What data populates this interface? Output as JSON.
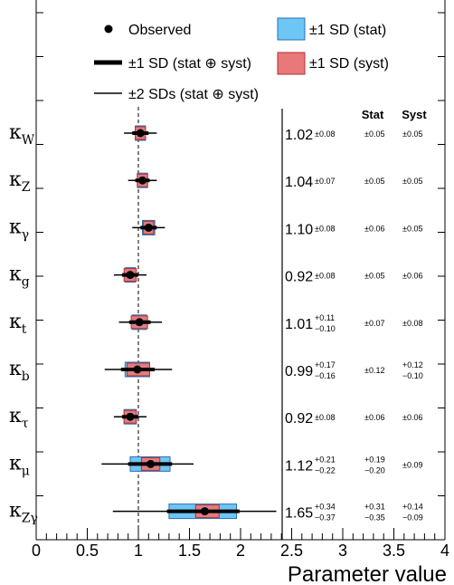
{
  "chart_data": {
    "type": "scatter",
    "xlabel": "Parameter value",
    "xlim": [
      0,
      4
    ],
    "x_ticks": [
      "0",
      "0.5",
      "1",
      "1.5",
      "2",
      "2.5",
      "3",
      "3.5",
      "4"
    ],
    "reference_line": 1,
    "legend": [
      {
        "key": "observed",
        "label": "Observed"
      },
      {
        "key": "thick",
        "label": "±1 SD (stat ⊕ syst)"
      },
      {
        "key": "thin",
        "label": "±2 SDs (stat ⊕ syst)"
      },
      {
        "key": "stat_box",
        "label": "±1 SD (stat)"
      },
      {
        "key": "syst_box",
        "label": "±1 SD (syst)"
      }
    ],
    "column_headers": {
      "stat": "Stat",
      "syst": "Syst"
    },
    "colors": {
      "stat": "#6ec6f5",
      "syst": "#e8787a",
      "stat_edge": "#2b6fb5",
      "syst_edge": "#b03030"
    },
    "parameters": [
      {
        "symbol": "κ",
        "sub": "W",
        "value": 1.02,
        "value_text": "1.02",
        "tot": "±0.08",
        "stat": "±0.05",
        "syst": "±0.05",
        "one_sd": [
          0.94,
          1.1
        ],
        "two_sd": [
          0.86,
          1.18
        ],
        "stat_band": [
          0.97,
          1.07
        ],
        "syst_band": [
          0.97,
          1.07
        ]
      },
      {
        "symbol": "κ",
        "sub": "Z",
        "value": 1.04,
        "value_text": "1.04",
        "tot": "±0.07",
        "stat": "±0.05",
        "syst": "±0.05",
        "one_sd": [
          0.97,
          1.11
        ],
        "two_sd": [
          0.9,
          1.18
        ],
        "stat_band": [
          0.99,
          1.09
        ],
        "syst_band": [
          0.99,
          1.09
        ]
      },
      {
        "symbol": "κ",
        "sub": "γ",
        "value": 1.1,
        "value_text": "1.10",
        "tot": "±0.08",
        "stat": "±0.06",
        "syst": "±0.05",
        "one_sd": [
          1.02,
          1.18
        ],
        "two_sd": [
          0.94,
          1.26
        ],
        "stat_band": [
          1.04,
          1.16
        ],
        "syst_band": [
          1.05,
          1.15
        ]
      },
      {
        "symbol": "κ",
        "sub": "g",
        "value": 0.92,
        "value_text": "0.92",
        "tot": "±0.08",
        "stat": "±0.05",
        "syst": "±0.06",
        "one_sd": [
          0.84,
          1.0
        ],
        "two_sd": [
          0.76,
          1.08
        ],
        "stat_band": [
          0.87,
          0.97
        ],
        "syst_band": [
          0.86,
          0.98
        ]
      },
      {
        "symbol": "κ",
        "sub": "t",
        "value": 1.01,
        "value_text": "1.01",
        "tot_up": "+0.11",
        "tot_dn": "−0.10",
        "stat": "±0.07",
        "syst": "±0.08",
        "one_sd": [
          0.91,
          1.12
        ],
        "two_sd": [
          0.81,
          1.23
        ],
        "stat_band": [
          0.94,
          1.08
        ],
        "syst_band": [
          0.93,
          1.09
        ]
      },
      {
        "symbol": "κ",
        "sub": "b",
        "value": 0.99,
        "value_text": "0.99",
        "tot_up": "+0.17",
        "tot_dn": "−0.16",
        "stat": "±0.12",
        "syst_up": "+0.12",
        "syst_dn": "−0.10",
        "one_sd": [
          0.83,
          1.16
        ],
        "two_sd": [
          0.67,
          1.33
        ],
        "stat_band": [
          0.87,
          1.11
        ],
        "syst_band": [
          0.89,
          1.11
        ]
      },
      {
        "symbol": "κ",
        "sub": "τ",
        "value": 0.92,
        "value_text": "0.92",
        "tot": "±0.08",
        "stat": "±0.06",
        "syst": "±0.06",
        "one_sd": [
          0.84,
          1.0
        ],
        "two_sd": [
          0.76,
          1.08
        ],
        "stat_band": [
          0.86,
          0.98
        ],
        "syst_band": [
          0.86,
          0.98
        ]
      },
      {
        "symbol": "κ",
        "sub": "μ",
        "value": 1.12,
        "value_text": "1.12",
        "tot_up": "+0.21",
        "tot_dn": "−0.22",
        "stat_up": "+0.19",
        "stat_dn": "−0.20",
        "syst": "±0.09",
        "one_sd": [
          0.9,
          1.33
        ],
        "two_sd": [
          0.64,
          1.54
        ],
        "stat_band": [
          0.92,
          1.31
        ],
        "syst_band": [
          1.03,
          1.21
        ]
      },
      {
        "symbol": "κ",
        "sub": "Zγ",
        "value": 1.65,
        "value_text": "1.65",
        "tot_up": "+0.34",
        "tot_dn": "−0.37",
        "stat_up": "+0.31",
        "stat_dn": "−0.35",
        "syst_up": "+0.14",
        "syst_dn": "−0.09",
        "one_sd": [
          1.28,
          1.99
        ],
        "two_sd": [
          0.75,
          2.35
        ],
        "stat_band": [
          1.3,
          1.96
        ],
        "syst_band": [
          1.56,
          1.79
        ]
      }
    ]
  }
}
